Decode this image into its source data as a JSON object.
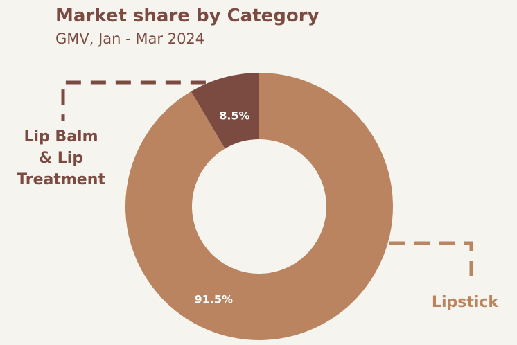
{
  "header": {
    "title": "Market share by Category",
    "subtitle": "GMV, Jan - Mar 2024"
  },
  "chart_data": {
    "type": "pie",
    "title": "Market share by Category",
    "subtitle": "GMV, Jan - Mar 2024",
    "donut": true,
    "unit": "%",
    "categories": [
      "Lipstick",
      "Lip Balm & Lip Treatment"
    ],
    "values": [
      91.5,
      8.5
    ],
    "data_labels": [
      "91.5%",
      "8.5%"
    ],
    "callouts": [
      {
        "category": "Lip Balm & Lip Treatment",
        "lines": [
          "Lip Balm",
          "& Lip",
          "Treatment"
        ],
        "color": "#7b4a40"
      },
      {
        "category": "Lipstick",
        "lines": [
          "Lipstick"
        ],
        "color": "#b9845f"
      }
    ],
    "colors": [
      "#b9845f",
      "#7b4a40"
    ]
  }
}
